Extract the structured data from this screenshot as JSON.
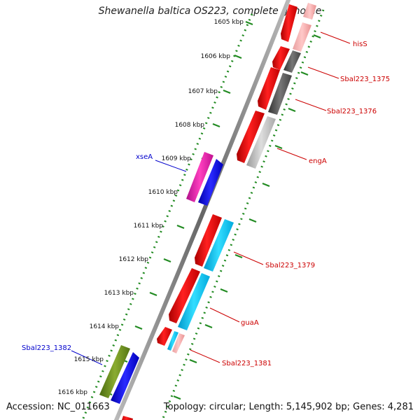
{
  "title": "Shewanella baltica OS223, complete genome",
  "footer": {
    "accession": "Accession: NC_011663",
    "summary": "Topology: circular; Length: 5,145,902 bp; Genes: 4,281"
  },
  "colors": {
    "dots": "#228b22",
    "backbone": "#8c8c8c",
    "forward_label": "#0000cc",
    "reverse_label": "#cc0000"
  },
  "ticks": [
    "1605 kbp",
    "1606 kbp",
    "1607 kbp",
    "1608 kbp",
    "1609 kbp",
    "1610 kbp",
    "1611 kbp",
    "1612 kbp",
    "1613 kbp",
    "1614 kbp",
    "1615 kbp",
    "1616 kbp"
  ],
  "gene_labels": {
    "forward": [
      "xseA",
      "Sbal223_1382"
    ],
    "reverse": [
      "hisS",
      "Sbal223_1375",
      "Sbal223_1376",
      "engA",
      "Sbal223_1379",
      "guaA",
      "Sbal223_1381"
    ]
  }
}
